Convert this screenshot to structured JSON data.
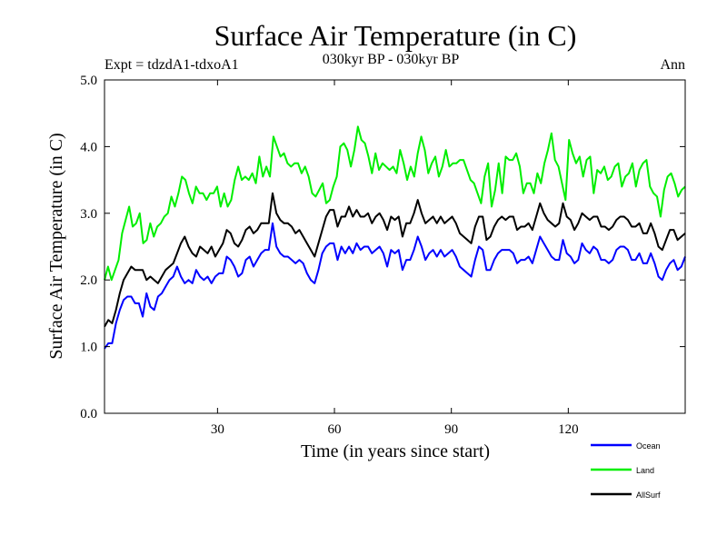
{
  "chart_data": {
    "type": "line",
    "title": "Surface Air Temperature (in C)",
    "subtitle": "030kyr BP - 030kyr BP",
    "expt_label": "Expt = tdzdA1-tdxoA1",
    "period_label": "Ann",
    "xlabel": "Time (in years since start)",
    "ylabel": "Surface Air Temperature (in C)",
    "xlim": [
      1,
      150
    ],
    "ylim": [
      0,
      5
    ],
    "xticks": [
      30,
      60,
      90,
      120
    ],
    "xtick_labels": [
      "30",
      "60",
      "90",
      "120"
    ],
    "yticks": [
      0,
      1,
      2,
      3,
      4,
      5
    ],
    "ytick_labels": [
      "0.0",
      "1.0",
      "2.0",
      "3.0",
      "4.0",
      "5.0"
    ],
    "legend_position": "bottom-right",
    "series": [
      {
        "name": "Ocean",
        "color": "#0000ff",
        "values": [
          0.97,
          1.05,
          1.05,
          1.35,
          1.55,
          1.7,
          1.75,
          1.75,
          1.65,
          1.65,
          1.45,
          1.8,
          1.6,
          1.55,
          1.75,
          1.8,
          1.9,
          2.0,
          2.05,
          2.2,
          2.05,
          1.95,
          2.0,
          1.95,
          2.15,
          2.05,
          2.0,
          2.05,
          1.95,
          2.05,
          2.1,
          2.1,
          2.35,
          2.3,
          2.2,
          2.05,
          2.1,
          2.3,
          2.35,
          2.2,
          2.3,
          2.4,
          2.45,
          2.45,
          2.85,
          2.5,
          2.4,
          2.35,
          2.35,
          2.3,
          2.25,
          2.3,
          2.25,
          2.1,
          2.0,
          1.95,
          2.15,
          2.4,
          2.5,
          2.55,
          2.55,
          2.3,
          2.5,
          2.4,
          2.5,
          2.4,
          2.55,
          2.45,
          2.5,
          2.5,
          2.4,
          2.45,
          2.5,
          2.4,
          2.2,
          2.45,
          2.4,
          2.45,
          2.15,
          2.3,
          2.3,
          2.45,
          2.65,
          2.5,
          2.3,
          2.4,
          2.45,
          2.35,
          2.45,
          2.35,
          2.4,
          2.45,
          2.35,
          2.2,
          2.15,
          2.1,
          2.05,
          2.3,
          2.5,
          2.45,
          2.15,
          2.15,
          2.3,
          2.4,
          2.45,
          2.45,
          2.45,
          2.4,
          2.25,
          2.3,
          2.3,
          2.35,
          2.25,
          2.45,
          2.65,
          2.55,
          2.45,
          2.35,
          2.3,
          2.3,
          2.6,
          2.4,
          2.35,
          2.25,
          2.3,
          2.55,
          2.45,
          2.4,
          2.5,
          2.45,
          2.3,
          2.3,
          2.25,
          2.3,
          2.45,
          2.5,
          2.5,
          2.45,
          2.3,
          2.3,
          2.4,
          2.25,
          2.25,
          2.4,
          2.25,
          2.05,
          2.0,
          2.15,
          2.25,
          2.3,
          2.15,
          2.2,
          2.35
        ]
      },
      {
        "name": "Land",
        "color": "#00ee00",
        "values": [
          2.0,
          2.2,
          2.0,
          2.15,
          2.3,
          2.7,
          2.9,
          3.1,
          2.8,
          2.85,
          3.0,
          2.55,
          2.6,
          2.85,
          2.65,
          2.8,
          2.85,
          2.95,
          3.0,
          3.25,
          3.1,
          3.3,
          3.55,
          3.5,
          3.3,
          3.15,
          3.4,
          3.3,
          3.3,
          3.2,
          3.3,
          3.3,
          3.4,
          3.1,
          3.3,
          3.1,
          3.2,
          3.5,
          3.7,
          3.5,
          3.55,
          3.5,
          3.6,
          3.45,
          3.85,
          3.55,
          3.7,
          3.55,
          4.15,
          4.0,
          3.85,
          3.9,
          3.75,
          3.7,
          3.75,
          3.75,
          3.6,
          3.7,
          3.55,
          3.3,
          3.25,
          3.35,
          3.45,
          3.15,
          3.2,
          3.4,
          3.55,
          4.0,
          4.05,
          3.95,
          3.7,
          3.95,
          4.3,
          4.1,
          4.05,
          3.85,
          3.6,
          3.9,
          3.65,
          3.75,
          3.7,
          3.65,
          3.7,
          3.6,
          3.95,
          3.75,
          3.5,
          3.7,
          3.55,
          3.9,
          4.15,
          3.95,
          3.6,
          3.75,
          3.85,
          3.55,
          3.7,
          3.95,
          3.7,
          3.75,
          3.75,
          3.8,
          3.8,
          3.65,
          3.5,
          3.45,
          3.3,
          3.15,
          3.55,
          3.75,
          3.1,
          3.35,
          3.75,
          3.3,
          3.85,
          3.8,
          3.8,
          3.9,
          3.7,
          3.3,
          3.45,
          3.45,
          3.3,
          3.6,
          3.45,
          3.75,
          3.95,
          4.2,
          3.8,
          3.7,
          3.45,
          3.2,
          4.1,
          3.9,
          3.75,
          3.85,
          3.55,
          3.8,
          3.85,
          3.3,
          3.65,
          3.6,
          3.7,
          3.5,
          3.55,
          3.7,
          3.75,
          3.4,
          3.55,
          3.6,
          3.75,
          3.4,
          3.65,
          3.75,
          3.8,
          3.4,
          3.3,
          3.25,
          2.95,
          3.35,
          3.55,
          3.6,
          3.45,
          3.25,
          3.35,
          3.4
        ]
      },
      {
        "name": "AllSurf",
        "color": "#000000",
        "values": [
          1.3,
          1.4,
          1.35,
          1.55,
          1.8,
          2.0,
          2.1,
          2.2,
          2.15,
          2.15,
          2.15,
          2.0,
          2.05,
          2.0,
          1.95,
          2.05,
          2.15,
          2.2,
          2.25,
          2.4,
          2.55,
          2.65,
          2.5,
          2.4,
          2.35,
          2.5,
          2.45,
          2.4,
          2.5,
          2.35,
          2.45,
          2.55,
          2.75,
          2.7,
          2.55,
          2.5,
          2.6,
          2.75,
          2.8,
          2.7,
          2.75,
          2.85,
          2.85,
          2.85,
          3.3,
          3.0,
          2.9,
          2.85,
          2.85,
          2.8,
          2.7,
          2.75,
          2.65,
          2.55,
          2.45,
          2.35,
          2.55,
          2.75,
          2.95,
          3.05,
          3.05,
          2.8,
          2.95,
          2.95,
          3.1,
          2.95,
          3.05,
          2.95,
          2.95,
          3.0,
          2.85,
          2.95,
          3.0,
          2.9,
          2.75,
          2.95,
          2.9,
          2.95,
          2.65,
          2.85,
          2.85,
          3.0,
          3.2,
          3.0,
          2.85,
          2.9,
          2.95,
          2.85,
          2.95,
          2.85,
          2.9,
          2.95,
          2.85,
          2.7,
          2.65,
          2.6,
          2.55,
          2.8,
          2.95,
          2.95,
          2.6,
          2.65,
          2.8,
          2.9,
          2.95,
          2.9,
          2.95,
          2.95,
          2.75,
          2.8,
          2.8,
          2.85,
          2.75,
          2.95,
          3.15,
          3.0,
          2.9,
          2.85,
          2.8,
          2.85,
          3.15,
          2.95,
          2.9,
          2.75,
          2.85,
          3.0,
          2.95,
          2.9,
          2.95,
          2.95,
          2.8,
          2.8,
          2.75,
          2.8,
          2.9,
          2.95,
          2.95,
          2.9,
          2.8,
          2.8,
          2.85,
          2.7,
          2.7,
          2.85,
          2.7,
          2.5,
          2.45,
          2.6,
          2.75,
          2.75,
          2.6,
          2.65,
          2.7
        ]
      }
    ]
  }
}
